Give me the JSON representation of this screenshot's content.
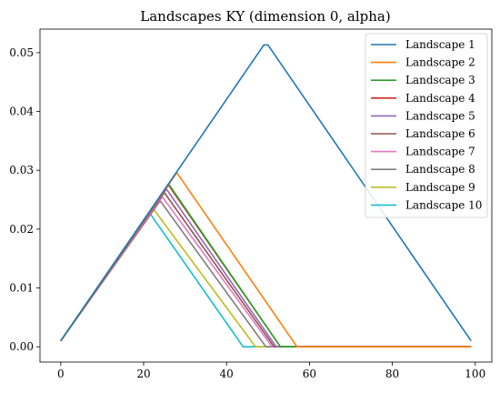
{
  "chart_data": {
    "type": "line",
    "title": "Landscapes KY (dimension 0, alpha)",
    "xlabel": "",
    "ylabel": "",
    "xlim": [
      -5,
      104
    ],
    "ylim": [
      -0.0026,
      0.054
    ],
    "xticks": [
      0,
      20,
      40,
      60,
      80,
      100
    ],
    "yticks": [
      0.0,
      0.01,
      0.02,
      0.03,
      0.04,
      0.05
    ],
    "ytick_labels": [
      "0.00",
      "0.01",
      "0.02",
      "0.03",
      "0.04",
      "0.05"
    ],
    "grid": false,
    "legend_position": "top-right",
    "series": [
      {
        "name": "Landscape 1",
        "color": "#1f77b4",
        "x": [
          0,
          49,
          50,
          99
        ],
        "y": [
          0.001,
          0.0513,
          0.0513,
          0.001
        ]
      },
      {
        "name": "Landscape 2",
        "color": "#ff7f0e",
        "x": [
          0,
          28,
          57,
          99
        ],
        "y": [
          0.001,
          0.0296,
          0.0,
          0.0
        ]
      },
      {
        "name": "Landscape 3",
        "color": "#2ca02c",
        "x": [
          0,
          26,
          53,
          99
        ],
        "y": [
          0.001,
          0.0277,
          0.0,
          0.0
        ]
      },
      {
        "name": "Landscape 4",
        "color": "#d62728",
        "x": [
          0,
          26,
          53,
          99
        ],
        "y": [
          0.001,
          0.0275,
          0.0,
          0.0
        ]
      },
      {
        "name": "Landscape 5",
        "color": "#9467bd",
        "x": [
          0,
          25.5,
          52,
          99
        ],
        "y": [
          0.001,
          0.0268,
          0.0,
          0.0
        ]
      },
      {
        "name": "Landscape 6",
        "color": "#8c564b",
        "x": [
          0,
          25,
          51.5,
          99
        ],
        "y": [
          0.001,
          0.0262,
          0.0,
          0.0
        ]
      },
      {
        "name": "Landscape 7",
        "color": "#e377c2",
        "x": [
          0,
          24.5,
          51,
          99
        ],
        "y": [
          0.001,
          0.0255,
          0.0,
          0.0
        ]
      },
      {
        "name": "Landscape 8",
        "color": "#7f7f7f",
        "x": [
          0,
          24,
          49.5,
          99
        ],
        "y": [
          0.001,
          0.0248,
          0.0,
          0.0
        ]
      },
      {
        "name": "Landscape 9",
        "color": "#bcbd22",
        "x": [
          0,
          22.5,
          47,
          99
        ],
        "y": [
          0.001,
          0.0233,
          0.0,
          0.0
        ]
      },
      {
        "name": "Landscape 10",
        "color": "#17becf",
        "x": [
          0,
          21.5,
          44,
          99
        ],
        "y": [
          0.001,
          0.0227,
          0.0,
          0.0
        ]
      }
    ]
  }
}
